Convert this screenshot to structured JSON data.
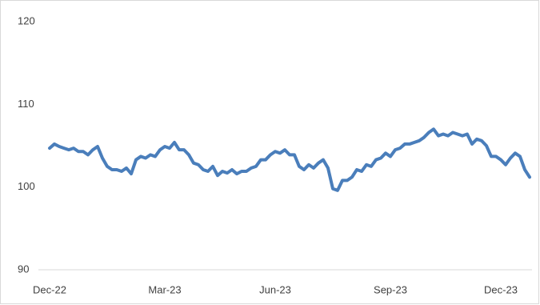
{
  "chart_data": {
    "type": "line",
    "categories": [
      "Dec-22",
      null,
      null,
      null,
      null,
      null,
      null,
      null,
      null,
      null,
      null,
      null,
      null,
      null,
      null,
      null,
      null,
      null,
      null,
      null,
      null,
      null,
      null,
      null,
      "Mar-23",
      null,
      null,
      null,
      null,
      null,
      null,
      null,
      null,
      null,
      null,
      null,
      null,
      null,
      null,
      null,
      null,
      null,
      null,
      null,
      null,
      null,
      null,
      "Jun-23",
      null,
      null,
      null,
      null,
      null,
      null,
      null,
      null,
      null,
      null,
      null,
      null,
      null,
      null,
      null,
      null,
      null,
      null,
      null,
      null,
      null,
      null,
      null,
      "Sep-23",
      null,
      null,
      null,
      null,
      null,
      null,
      null,
      null,
      null,
      null,
      null,
      null,
      null,
      null,
      null,
      null,
      null,
      null,
      null,
      null,
      null,
      null,
      "Dec-23",
      null,
      null,
      null,
      null,
      null,
      null
    ],
    "values": [
      104.7,
      105.2,
      104.9,
      104.7,
      104.5,
      104.7,
      104.3,
      104.3,
      103.9,
      104.5,
      104.9,
      103.5,
      102.5,
      102.1,
      102.1,
      101.9,
      102.3,
      101.6,
      103.3,
      103.7,
      103.5,
      103.9,
      103.7,
      104.5,
      104.9,
      104.7,
      105.4,
      104.5,
      104.5,
      103.9,
      102.9,
      102.7,
      102.1,
      101.9,
      102.5,
      101.4,
      101.9,
      101.7,
      102.1,
      101.6,
      101.9,
      101.9,
      102.3,
      102.5,
      103.3,
      103.3,
      103.9,
      104.3,
      104.1,
      104.5,
      103.9,
      103.9,
      102.5,
      102.1,
      102.7,
      102.3,
      102.9,
      103.3,
      102.3,
      99.8,
      99.6,
      100.8,
      100.8,
      101.2,
      102.1,
      101.9,
      102.7,
      102.5,
      103.3,
      103.5,
      104.1,
      103.7,
      104.5,
      104.7,
      105.2,
      105.2,
      105.4,
      105.6,
      106.0,
      106.6,
      107.0,
      106.2,
      106.4,
      106.2,
      106.6,
      106.4,
      106.2,
      106.4,
      105.2,
      105.8,
      105.6,
      105.0,
      103.7,
      103.7,
      103.3,
      102.7,
      103.5,
      104.1,
      103.7,
      102.1,
      101.2
    ],
    "color": "#4a7ebb",
    "ylim": [
      90,
      120
    ],
    "yticks": [
      90,
      100,
      110,
      120
    ]
  }
}
